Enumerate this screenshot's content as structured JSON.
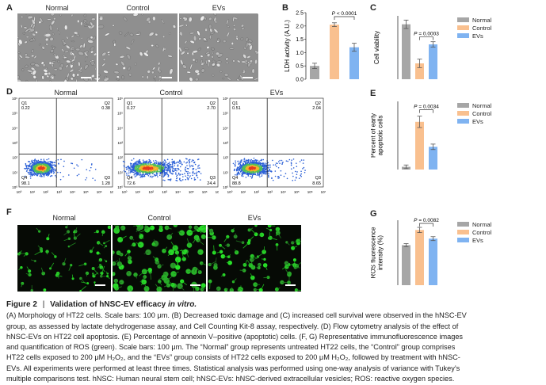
{
  "panels": {
    "A": {
      "label": "A",
      "titles": [
        "Normal",
        "Control",
        "EVs"
      ]
    },
    "B": {
      "label": "B"
    },
    "C": {
      "label": "C"
    },
    "D": {
      "label": "D",
      "titles": [
        "Normal",
        "Control",
        "EVs"
      ],
      "quadrants": [
        {
          "q1": "Q1",
          "q1v": "0.22",
          "q2": "Q2",
          "q2v": "0.38",
          "q3": "Q3",
          "q3v": "1.28",
          "q4": "Q4",
          "q4v": "98.1"
        },
        {
          "q1": "Q1",
          "q1v": "0.27",
          "q2": "Q2",
          "q2v": "2.70",
          "q3": "Q3",
          "q3v": "24.4",
          "q4": "Q4",
          "q4v": "72.6"
        },
        {
          "q1": "Q1",
          "q1v": "0.51",
          "q2": "Q2",
          "q2v": "2.04",
          "q3": "Q3",
          "q3v": "8.65",
          "q4": "Q4",
          "q4v": "88.8"
        }
      ],
      "xticks": [
        "10⁰",
        "10¹",
        "10²",
        "10³",
        "10⁴",
        "10⁵",
        "10⁶",
        "10⁷"
      ],
      "yticks": [
        "10⁶",
        "10⁵",
        "10⁴",
        "10³",
        "10²",
        "10¹",
        "10⁰"
      ]
    },
    "E": {
      "label": "E"
    },
    "F": {
      "label": "F",
      "titles": [
        "Normal",
        "Control",
        "EVs"
      ]
    },
    "G": {
      "label": "G"
    }
  },
  "legend": {
    "items": [
      "Normal",
      "Control",
      "EVs"
    ],
    "colors": [
      "#a6a6a6",
      "#f9c08f",
      "#7fb3f1"
    ]
  },
  "chart_data": [
    {
      "panel": "B",
      "type": "bar",
      "categories": [
        "Normal",
        "Control",
        "EVs"
      ],
      "values": [
        0.5,
        2.05,
        1.2
      ],
      "errors": [
        0.1,
        0.07,
        0.15
      ],
      "ylabel": "LDH activity (A.U.)",
      "ylim": [
        0,
        2.5
      ],
      "yticks": [
        "0.0",
        "0.5",
        "1.0",
        "1.5",
        "2.0",
        "2.5"
      ],
      "annotation": "P < 0.0001"
    },
    {
      "panel": "C",
      "type": "bar",
      "categories": [
        "Normal",
        "Control",
        "EVs"
      ],
      "values": [
        0.52,
        0.15,
        0.33
      ],
      "errors": [
        0.04,
        0.04,
        0.025
      ],
      "ylabel": "Cell viability",
      "ylim": [
        0,
        0.6
      ],
      "yticks": [],
      "annotation": "P = 0.0003"
    },
    {
      "panel": "E",
      "type": "bar",
      "categories": [
        "Normal",
        "Control",
        "EVs"
      ],
      "values": [
        1.2,
        21,
        10
      ],
      "errors": [
        0.8,
        2.5,
        1.2
      ],
      "ylabel": "Percent of early apoptotic cells",
      "ylim": [
        0,
        30
      ],
      "yticks": [],
      "annotation": "P = 0.0034"
    },
    {
      "panel": "G",
      "type": "bar",
      "categories": [
        "Normal",
        "Control",
        "EVs"
      ],
      "values": [
        18.5,
        25.5,
        21.5
      ],
      "errors": [
        0.7,
        1.2,
        0.9
      ],
      "ylabel": "ROS fluorescence intensity (%)",
      "ylim": [
        0,
        30
      ],
      "yticks": [],
      "annotation": "P = 0.0082"
    }
  ],
  "caption": {
    "figure": "Figure 2",
    "separator": "|",
    "title_pre": "Validation of hNSC-EV efficacy ",
    "title_em": "in vitro.",
    "lines": [
      "(A) Morphology of HT22 cells. Scale bars: 100 μm. (B) Decreased toxic damage and (C) increased cell survival were observed in the hNSC-EV",
      "group, as assessed by lactate dehydrogenase assay, and Cell Counting Kit-8 assay, respectively. (D) Flow cytometry analysis of the effect of",
      "hNSC-EVs on HT22 cell apoptosis. (E) Percentage of annexin V–positive (apoptotic) cells. (F, G) Representative immunofluorescence images",
      "and quantification of ROS (green). Scale bars: 100 μm. The “Normal” group represents untreated HT22 cells, the “Control” group comprises",
      "HT22 cells exposed to 200 μM H₂O₂, and the “EVs” group consists of HT22 cells exposed to 200 μM H₂O₂, followed by treatment with hNSC-",
      "EVs. All experiments were performed at least three times. Statistical analysis was performed using one-way analysis of variance with Tukey’s",
      "multiple comparisons test. hNSC: Human neural stem cell; hNSC-EVs: hNSC-derived extracellular vesicles; ROS: reactive oxygen species."
    ]
  }
}
